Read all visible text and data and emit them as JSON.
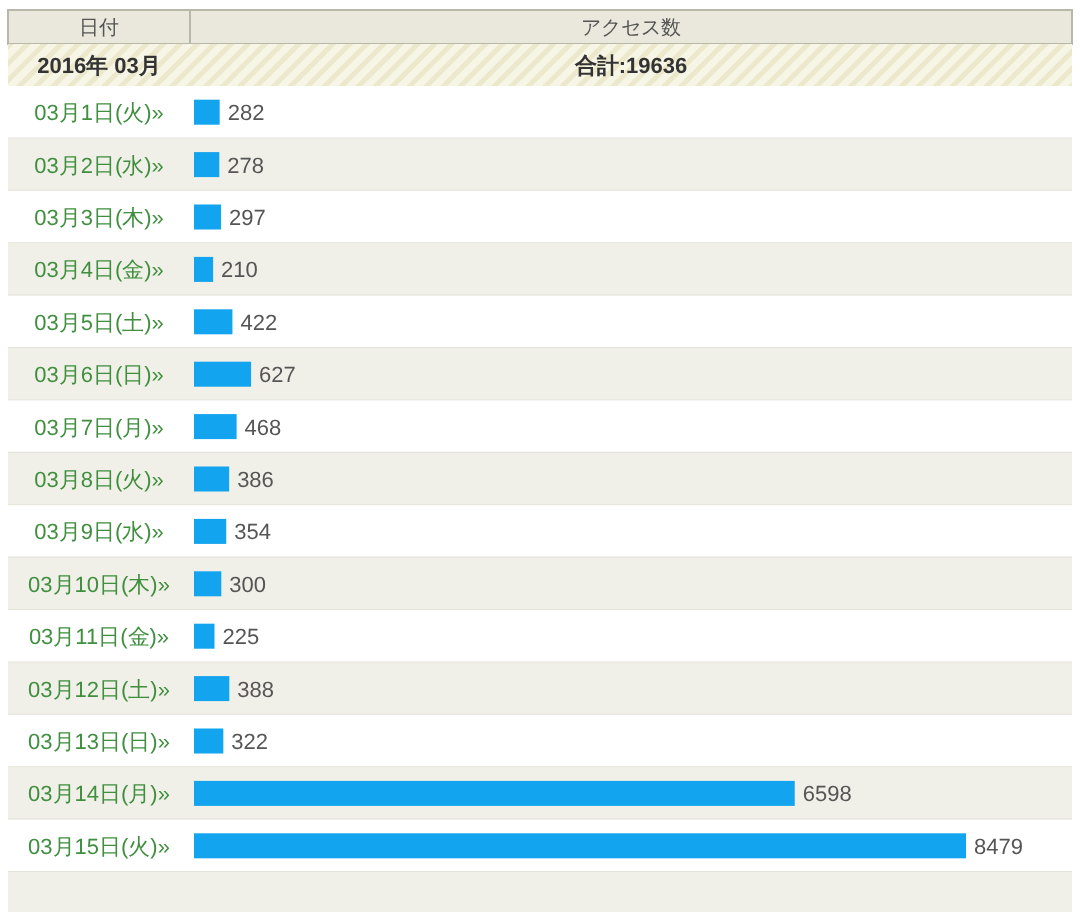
{
  "chart_data": {
    "type": "bar",
    "orientation": "horizontal",
    "title": "2016年 03月",
    "ylabel": "日付",
    "xlabel": "アクセス数",
    "annotations": [
      "合計:19636"
    ],
    "categories": [
      "03月1日(火)»",
      "03月2日(水)»",
      "03月3日(木)»",
      "03月4日(金)»",
      "03月5日(土)»",
      "03月6日(日)»",
      "03月7日(月)»",
      "03月8日(火)»",
      "03月9日(水)»",
      "03月10日(木)»",
      "03月11日(金)»",
      "03月12日(土)»",
      "03月13日(日)»",
      "03月14日(月)»",
      "03月15日(火)»"
    ],
    "series": [
      {
        "color": "#12a4ee",
        "values": [
          282,
          278,
          297,
          210,
          422,
          627,
          468,
          386,
          354,
          300,
          225,
          388,
          322,
          6598,
          8479
        ]
      }
    ],
    "data_labels": true
  }
}
